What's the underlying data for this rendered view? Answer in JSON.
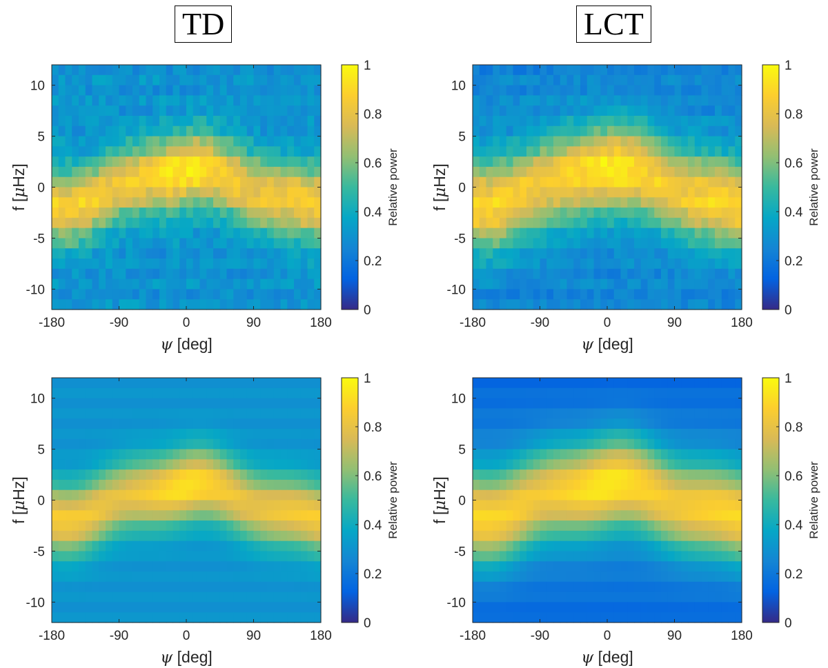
{
  "titles": {
    "left": "TD",
    "right": "LCT"
  },
  "colormap": {
    "name": "parula",
    "stops": [
      "#352a87",
      "#0363e1",
      "#1485d4",
      "#06a7c6",
      "#38b99e",
      "#92bf73",
      "#d9ba56",
      "#fcce2e",
      "#f9fb0e"
    ]
  },
  "chart_data": [
    {
      "id": "td-top",
      "type": "heatmap",
      "column": "TD",
      "xlabel_symbol": "ψ",
      "xlabel_unit": "[deg]",
      "ylabel_prefix": "f [",
      "ylabel_mu": "μ",
      "ylabel_suffix": "Hz]",
      "xlim": [
        -180,
        180
      ],
      "ylim": [
        -12,
        12
      ],
      "xticks": [
        "-180",
        "-90",
        "0",
        "90",
        "180"
      ],
      "yticks": [
        "-10",
        "-5",
        "0",
        "5",
        "10"
      ],
      "colorbar_label": "Relative power",
      "clim": [
        0,
        1
      ],
      "colorbar_ticks": [
        "0",
        "0.2",
        "0.4",
        "0.6",
        "0.8",
        "1"
      ],
      "model": {
        "core": 0.88,
        "peak": 0.08,
        "noise": 0.06,
        "sigma": 2.5,
        "f_low": -1.8,
        "f_high": 1.6,
        "shift": 0.3,
        "bg": 0.3,
        "edge": 0.0
      }
    },
    {
      "id": "lct-top",
      "type": "heatmap",
      "column": "LCT",
      "xlabel_symbol": "ψ",
      "xlabel_unit": "[deg]",
      "ylabel_prefix": "f [",
      "ylabel_mu": "μ",
      "ylabel_suffix": "Hz]",
      "xlim": [
        -180,
        180
      ],
      "ylim": [
        -12,
        12
      ],
      "xticks": [
        "-180",
        "-90",
        "0",
        "90",
        "180"
      ],
      "yticks": [
        "-10",
        "-5",
        "0",
        "5",
        "10"
      ],
      "colorbar_label": "Relative power",
      "clim": [
        0,
        1
      ],
      "colorbar_ticks": [
        "0",
        "0.2",
        "0.4",
        "0.6",
        "0.8",
        "1"
      ],
      "model": {
        "core": 0.9,
        "peak": 0.06,
        "noise": 0.05,
        "sigma": 3.0,
        "f_low": -1.8,
        "f_high": 1.8,
        "shift": 0.2,
        "bg": 0.28,
        "edge": 0.04
      }
    },
    {
      "id": "td-bottom",
      "type": "heatmap",
      "column": "TD",
      "xlabel_symbol": "ψ",
      "xlabel_unit": "[deg]",
      "ylabel_prefix": "f [",
      "ylabel_mu": "μ",
      "ylabel_suffix": "Hz]",
      "xlim": [
        -180,
        180
      ],
      "ylim": [
        -12,
        12
      ],
      "xticks": [
        "-180",
        "-90",
        "0",
        "90",
        "180"
      ],
      "yticks": [
        "-10",
        "-5",
        "0",
        "5",
        "10"
      ],
      "colorbar_label": "Relative power",
      "clim": [
        0,
        1
      ],
      "colorbar_ticks": [
        "0",
        "0.2",
        "0.4",
        "0.6",
        "0.8",
        "1"
      ],
      "model": {
        "core": 0.86,
        "peak": 0.08,
        "noise": 0.0,
        "sigma": 2.4,
        "f_low": -1.8,
        "f_high": 1.4,
        "shift": 0.35,
        "bg": 0.3,
        "edge": 0.0
      }
    },
    {
      "id": "lct-bottom",
      "type": "heatmap",
      "column": "LCT",
      "xlabel_symbol": "ψ",
      "xlabel_unit": "[deg]",
      "ylabel_prefix": "f [",
      "ylabel_mu": "μ",
      "ylabel_suffix": "Hz]",
      "xlim": [
        -180,
        180
      ],
      "ylim": [
        -12,
        12
      ],
      "xticks": [
        "-180",
        "-90",
        "0",
        "90",
        "180"
      ],
      "yticks": [
        "-10",
        "-5",
        "0",
        "5",
        "10"
      ],
      "colorbar_label": "Relative power",
      "clim": [
        0,
        1
      ],
      "colorbar_ticks": [
        "0",
        "0.2",
        "0.4",
        "0.6",
        "0.8",
        "1"
      ],
      "model": {
        "core": 0.9,
        "peak": 0.06,
        "noise": 0.0,
        "sigma": 3.1,
        "f_low": -1.6,
        "f_high": 1.6,
        "shift": 0.35,
        "bg": 0.24,
        "edge": 0.1
      }
    }
  ]
}
